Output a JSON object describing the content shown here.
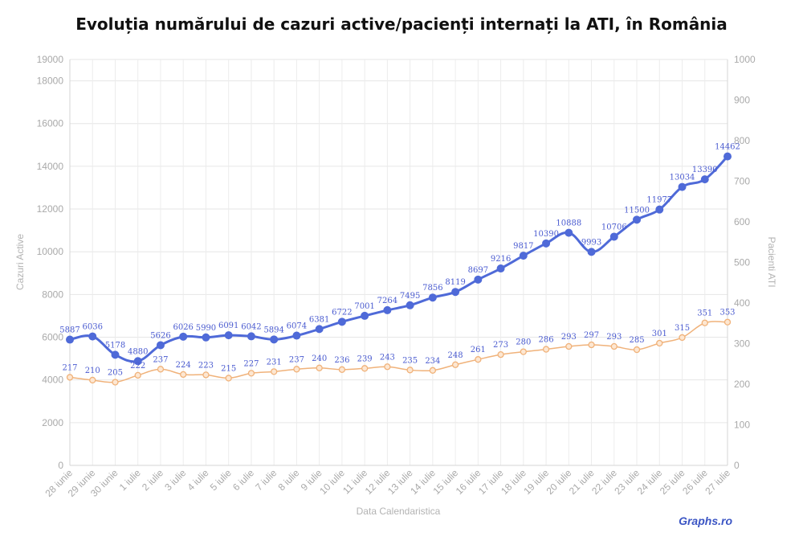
{
  "chart_data": {
    "type": "line",
    "title": "Evoluția numărului de cazuri active/pacienți internați la ATI, în România",
    "xlabel": "Data Calendaristica",
    "ylabel": "Cazuri Active",
    "y2label": "Pacienti ATI",
    "ylim": [
      0,
      19000
    ],
    "y2lim": [
      0,
      1000
    ],
    "yticks": [
      0,
      2000,
      4000,
      6000,
      8000,
      10000,
      12000,
      14000,
      16000,
      18000,
      19000
    ],
    "y2ticks": [
      0,
      100,
      200,
      300,
      400,
      500,
      600,
      700,
      800,
      900,
      1000
    ],
    "grid": true,
    "categories": [
      "28 iunie",
      "29 iunie",
      "30 iunie",
      "1 iulie",
      "2 iulie",
      "3 iulie",
      "4 iulie",
      "5 iulie",
      "6 iulie",
      "7 iulie",
      "8 iulie",
      "9 iulie",
      "10 iulie",
      "11 iulie",
      "12 iulie",
      "13 iulie",
      "14 iulie",
      "15 iulie",
      "16 iulie",
      "17 iulie",
      "18 iulie",
      "19 iulie",
      "20 iulie",
      "21 iulie",
      "22 iulie",
      "23 iulie",
      "24 iulie",
      "25 iulie",
      "26 iulie",
      "27 iulie"
    ],
    "series": [
      {
        "axis": "left",
        "color": "#4f6ad8",
        "values": [
          5887,
          6036,
          5178,
          4880,
          5626,
          6026,
          5990,
          6091,
          6042,
          5894,
          6074,
          6381,
          6722,
          7001,
          7264,
          7495,
          7856,
          8119,
          8697,
          9216,
          9817,
          10390,
          10888,
          9993,
          10706,
          11500,
          11977,
          13034,
          13390,
          14462
        ]
      },
      {
        "axis": "right",
        "color": "#f0b27a",
        "values": [
          217,
          210,
          205,
          222,
          237,
          224,
          223,
          215,
          227,
          231,
          237,
          240,
          236,
          239,
          243,
          235,
          234,
          248,
          261,
          273,
          280,
          286,
          293,
          297,
          293,
          285,
          301,
          315,
          351,
          353
        ]
      }
    ]
  },
  "watermark": "Graphs.ro"
}
